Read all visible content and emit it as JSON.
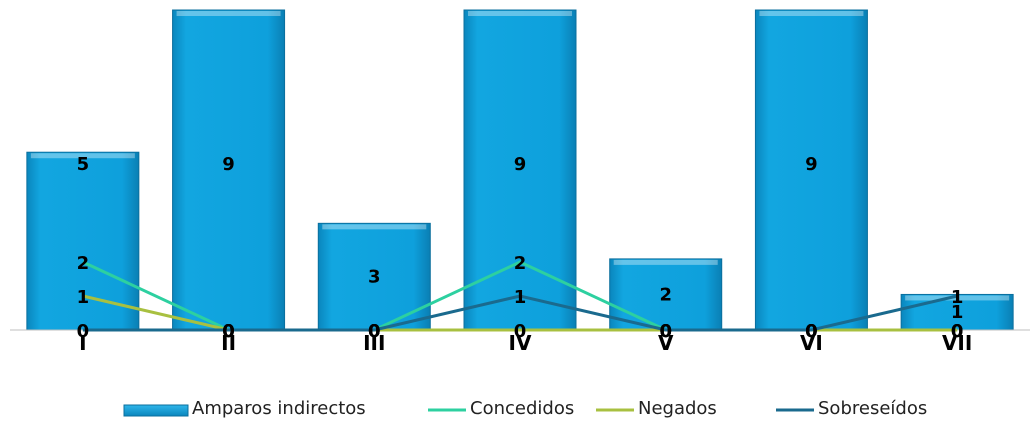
{
  "chart_data": {
    "type": "bar",
    "categories": [
      "I",
      "II",
      "III",
      "IV",
      "V",
      "VI",
      "VII"
    ],
    "ylim": [
      0,
      9
    ],
    "grid": false,
    "legend_position": "bottom",
    "bar_series": {
      "name": "Amparos indirectos",
      "values": [
        5,
        9,
        3,
        9,
        2,
        9,
        1
      ],
      "color": "#0ea0dc"
    },
    "line_series": [
      {
        "name": "Concedidos",
        "values": [
          2,
          0,
          0,
          2,
          0,
          0,
          0
        ],
        "color": "#2dd0a0"
      },
      {
        "name": "Negados",
        "values": [
          1,
          0,
          0,
          0,
          0,
          0,
          0
        ],
        "color": "#a8c040"
      },
      {
        "name": "Sobreseídos",
        "values": [
          0,
          0,
          0,
          1,
          0,
          0,
          1
        ],
        "color": "#1a6a8e"
      }
    ]
  }
}
